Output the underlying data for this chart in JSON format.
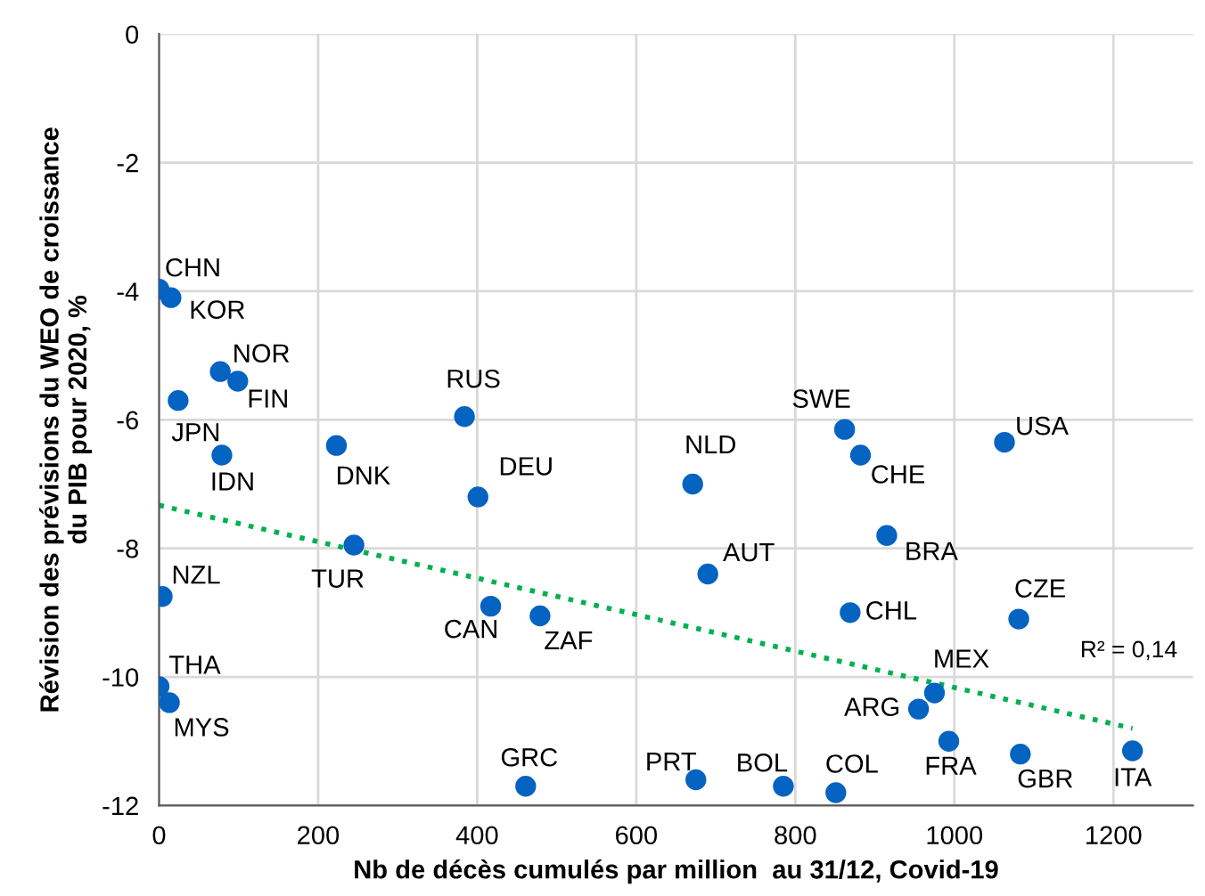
{
  "chart_data": {
    "type": "scatter",
    "xlabel": "Nb de décès cumulés par million  au 31/12, Covid-19",
    "ylabel": "Révision des prévisions du WEO de croissance\ndu PIB pour 2020, %",
    "xlim": [
      0,
      1300
    ],
    "xticks": [
      0,
      200,
      400,
      600,
      800,
      1000,
      1200
    ],
    "ylim": [
      -12,
      0
    ],
    "yticks": [
      -12,
      -10,
      -8,
      -6,
      -4,
      -2,
      0
    ],
    "grid": true,
    "marker": "circle",
    "series": [
      {
        "color": "#0563c1",
        "x": [
          0,
          15,
          77,
          99,
          24,
          79,
          223,
          384,
          401,
          245,
          4,
          417,
          479,
          0,
          13,
          461,
          671,
          862,
          882,
          1063,
          690,
          915,
          869,
          1081,
          975,
          955,
          993,
          1083,
          1224,
          675,
          785,
          851
        ],
        "values": [
          -3.97,
          -4.1,
          -5.25,
          -5.4,
          -5.7,
          -6.55,
          -6.4,
          -5.95,
          -7.2,
          -7.95,
          -8.75,
          -8.9,
          -9.05,
          -10.15,
          -10.4,
          -11.7,
          -7.0,
          -6.15,
          -6.55,
          -6.35,
          -8.4,
          -7.8,
          -9.0,
          -9.1,
          -10.25,
          -10.5,
          -11.0,
          -11.2,
          -11.15,
          -11.6,
          -11.7,
          -11.8
        ]
      },
      {
        "type": "line",
        "color": "#00b050",
        "line_style": "dotted",
        "marker": "none",
        "x": [
          0,
          1224
        ],
        "values": [
          -7.33,
          -10.8
        ]
      }
    ],
    "annotations": [
      {
        "text": "CHN",
        "x": 0,
        "y": -3.97
      },
      {
        "text": "KOR",
        "x": 15,
        "y": -4.1
      },
      {
        "text": "NOR",
        "x": 77,
        "y": -5.25
      },
      {
        "text": "FIN",
        "x": 99,
        "y": -5.4
      },
      {
        "text": "JPN",
        "x": 24,
        "y": -5.7
      },
      {
        "text": "IDN",
        "x": 79,
        "y": -6.55
      },
      {
        "text": "DNK",
        "x": 223,
        "y": -6.4
      },
      {
        "text": "RUS",
        "x": 384,
        "y": -5.95
      },
      {
        "text": "DEU",
        "x": 401,
        "y": -7.2
      },
      {
        "text": "TUR",
        "x": 245,
        "y": -7.95
      },
      {
        "text": "NZL",
        "x": 4,
        "y": -8.75
      },
      {
        "text": "CAN",
        "x": 417,
        "y": -8.9
      },
      {
        "text": "ZAF",
        "x": 479,
        "y": -9.05
      },
      {
        "text": "THA",
        "x": 0,
        "y": -10.15
      },
      {
        "text": "MYS",
        "x": 13,
        "y": -10.4
      },
      {
        "text": "GRC",
        "x": 461,
        "y": -11.7
      },
      {
        "text": "NLD",
        "x": 671,
        "y": -7.0
      },
      {
        "text": "SWE",
        "x": 862,
        "y": -6.15
      },
      {
        "text": "CHE",
        "x": 882,
        "y": -6.55
      },
      {
        "text": "USA",
        "x": 1063,
        "y": -6.35
      },
      {
        "text": "AUT",
        "x": 690,
        "y": -8.4
      },
      {
        "text": "BRA",
        "x": 915,
        "y": -7.8
      },
      {
        "text": "CHL",
        "x": 869,
        "y": -9.0
      },
      {
        "text": "CZE",
        "x": 1081,
        "y": -9.1
      },
      {
        "text": "MEX",
        "x": 975,
        "y": -10.25
      },
      {
        "text": "ARG",
        "x": 955,
        "y": -10.5
      },
      {
        "text": "FRA",
        "x": 993,
        "y": -11.0
      },
      {
        "text": "GBR",
        "x": 1083,
        "y": -11.2
      },
      {
        "text": "ITA",
        "x": 1224,
        "y": -11.15
      },
      {
        "text": "PRT",
        "x": 675,
        "y": -11.6
      },
      {
        "text": "BOL",
        "x": 785,
        "y": -11.7
      },
      {
        "text": "COL",
        "x": 851,
        "y": -11.8
      },
      "R² = 0,14"
    ]
  }
}
